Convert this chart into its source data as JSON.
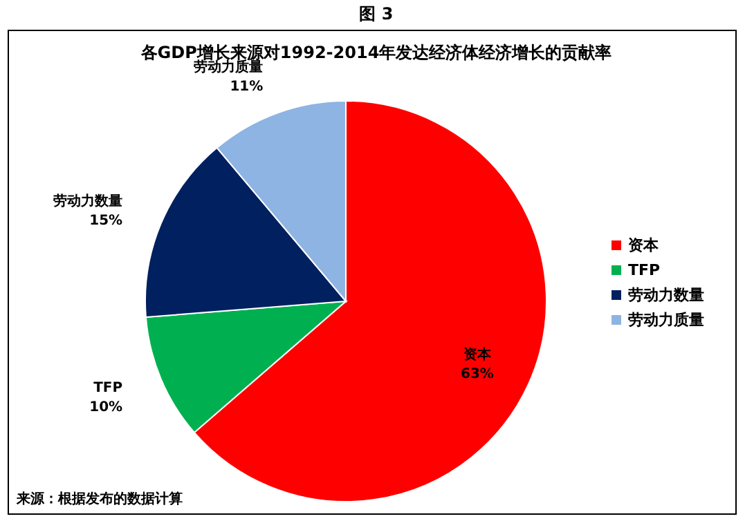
{
  "chart_data": {
    "type": "pie",
    "title": "各GDP增长来源对1992-2014年发达经济体经济增长的贡献率",
    "categories": [
      "资本",
      "TFP",
      "劳动力数量",
      "劳动力质量"
    ],
    "values": [
      63,
      10,
      15,
      11
    ],
    "value_labels": [
      "63%",
      "10%",
      "15%",
      "11%"
    ],
    "colors": [
      "#ff0000",
      "#00b050",
      "#002060",
      "#8db4e2"
    ],
    "legend": "right",
    "annotations": [
      "图 3",
      "来源：根据发布的数据计算"
    ]
  }
}
